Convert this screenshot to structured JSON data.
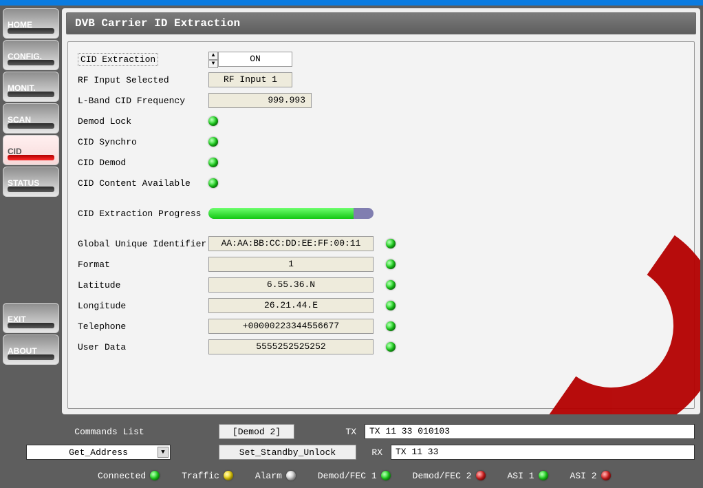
{
  "sidebar": {
    "items": [
      {
        "label": "HOME",
        "active": false
      },
      {
        "label": "CONFIG.",
        "active": false
      },
      {
        "label": "MONIT.",
        "active": false
      },
      {
        "label": "SCAN",
        "active": false
      },
      {
        "label": "CID",
        "active": true
      },
      {
        "label": "STATUS",
        "active": false
      }
    ],
    "exit": "EXIT",
    "about": "ABOUT"
  },
  "page": {
    "title": "DVB Carrier ID Extraction",
    "labels": {
      "cid_extraction": "CID Extraction",
      "rf_input_selected": "RF Input Selected",
      "lband_freq": "L-Band CID Frequency",
      "demod_lock": "Demod Lock",
      "cid_synchro": "CID Synchro",
      "cid_demod": "CID Demod",
      "cid_content_avail": "CID Content Available",
      "cid_progress": "CID Extraction Progress",
      "guid": "Global Unique Identifier",
      "format": "Format",
      "latitude": "Latitude",
      "longitude": "Longitude",
      "telephone": "Telephone",
      "user_data": "User Data"
    },
    "values": {
      "cid_extraction": "ON",
      "rf_input_selected": "RF Input 1",
      "lband_freq": "999.993",
      "guid": "AA:AA:BB:CC:DD:EE:FF:00:11",
      "format": "1",
      "latitude": "6.55.36.N",
      "longitude": "26.21.44.E",
      "telephone": "+00000223344556677",
      "user_data": "5555252525252"
    },
    "leds": {
      "demod_lock": "green",
      "cid_synchro": "green",
      "cid_demod": "green",
      "cid_content_avail": "green",
      "guid": "green",
      "format": "green",
      "latitude": "green",
      "longitude": "green",
      "telephone": "green",
      "user_data": "green"
    },
    "progress_percent": 88
  },
  "bottom": {
    "commands_list_label": "Commands List",
    "combo_value": "Get_Address",
    "btn_top": "[Demod 2]",
    "btn_bottom": "Set_Standby_Unlock",
    "tx_label": "TX",
    "rx_label": "RX",
    "tx_value": "TX 11 33 010103",
    "rx_value": "TX 11 33",
    "status": [
      {
        "label": "Connected",
        "color": "green"
      },
      {
        "label": "Traffic",
        "color": "yellow"
      },
      {
        "label": "Alarm",
        "color": "white"
      },
      {
        "label": "Demod/FEC 1",
        "color": "green"
      },
      {
        "label": "Demod/FEC 2",
        "color": "red"
      },
      {
        "label": "ASI 1",
        "color": "green"
      },
      {
        "label": "ASI 2",
        "color": "red"
      }
    ]
  }
}
